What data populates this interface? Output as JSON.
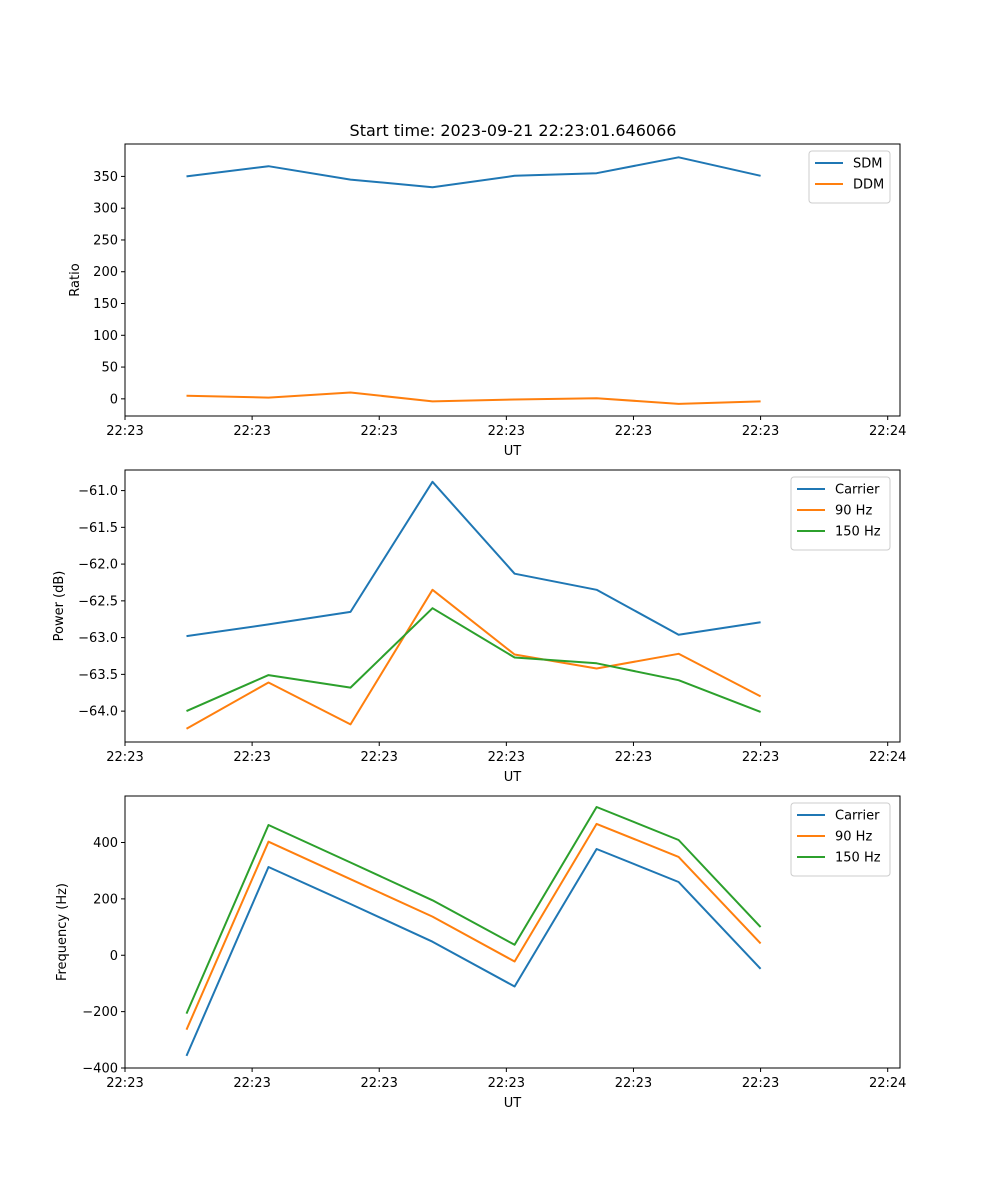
{
  "figure_title": "Start time: 2023-09-21 22:23:01.646066",
  "chart_data": [
    {
      "type": "line",
      "title": "Start time: 2023-09-21 22:23:01.646066",
      "xlabel": "UT",
      "ylabel": "Ratio",
      "x": [
        0,
        1,
        2,
        3,
        4,
        5,
        6,
        7
      ],
      "xlim": [
        -0.75,
        8.7
      ],
      "ylim": [
        -27,
        401
      ],
      "xticks": [
        -0.75,
        0.8,
        2.35,
        3.9,
        5.45,
        7.0,
        8.55
      ],
      "xtick_labels": [
        "22:23",
        "22:23",
        "22:23",
        "22:23",
        "22:23",
        "22:23",
        "22:24"
      ],
      "yticks": [
        0,
        50,
        100,
        150,
        200,
        250,
        300,
        350
      ],
      "ytick_labels": [
        "0",
        "50",
        "100",
        "150",
        "200",
        "250",
        "300",
        "350"
      ],
      "legend_position": "upper-right",
      "series": [
        {
          "name": "SDM",
          "color": "#1f77b4",
          "values": [
            350,
            366,
            345,
            333,
            351,
            355,
            380,
            351
          ]
        },
        {
          "name": "DDM",
          "color": "#ff7f0e",
          "values": [
            5,
            2,
            10,
            -4,
            -1,
            1,
            -8,
            -4
          ]
        }
      ]
    },
    {
      "type": "line",
      "title": "",
      "xlabel": "UT",
      "ylabel": "Power (dB)",
      "x": [
        0,
        1,
        2,
        3,
        4,
        5,
        6,
        7
      ],
      "xlim": [
        -0.75,
        8.7
      ],
      "ylim": [
        -64.42,
        -60.72
      ],
      "xticks": [
        -0.75,
        0.8,
        2.35,
        3.9,
        5.45,
        7.0,
        8.55
      ],
      "xtick_labels": [
        "22:23",
        "22:23",
        "22:23",
        "22:23",
        "22:23",
        "22:23",
        "22:24"
      ],
      "yticks": [
        -64.0,
        -63.5,
        -63.0,
        -62.5,
        -62.0,
        -61.5,
        -61.0
      ],
      "ytick_labels": [
        "−64.0",
        "−63.5",
        "−63.0",
        "−62.5",
        "−62.0",
        "−61.5",
        "−61.0"
      ],
      "legend_position": "upper-right",
      "series": [
        {
          "name": "Carrier",
          "color": "#1f77b4",
          "values": [
            -62.98,
            -62.82,
            -62.65,
            -60.88,
            -62.13,
            -62.35,
            -62.96,
            -62.79
          ]
        },
        {
          "name": "90 Hz",
          "color": "#ff7f0e",
          "values": [
            -64.24,
            -63.61,
            -64.18,
            -62.35,
            -63.23,
            -63.42,
            -63.22,
            -63.8
          ]
        },
        {
          "name": "150 Hz",
          "color": "#2ca02c",
          "values": [
            -64.0,
            -63.51,
            -63.68,
            -62.6,
            -63.27,
            -63.35,
            -63.58,
            -64.01
          ]
        }
      ]
    },
    {
      "type": "line",
      "title": "",
      "xlabel": "UT",
      "ylabel": "Frequency (Hz)",
      "x": [
        0,
        1,
        2,
        3,
        4,
        5,
        6,
        7
      ],
      "xlim": [
        -0.75,
        8.7
      ],
      "ylim": [
        -400,
        565
      ],
      "xticks": [
        -0.75,
        0.8,
        2.35,
        3.9,
        5.45,
        7.0,
        8.55
      ],
      "xtick_labels": [
        "22:23",
        "22:23",
        "22:23",
        "22:23",
        "22:23",
        "22:23",
        "22:24"
      ],
      "yticks": [
        -400,
        -200,
        0,
        200,
        400
      ],
      "ytick_labels": [
        "−400",
        "−200",
        "0",
        "200",
        "400"
      ],
      "legend_position": "upper-right",
      "series": [
        {
          "name": "Carrier",
          "color": "#1f77b4",
          "values": [
            -357,
            313,
            182,
            48,
            -111,
            377,
            260,
            -48
          ]
        },
        {
          "name": "90 Hz",
          "color": "#ff7f0e",
          "values": [
            -264,
            403,
            270,
            137,
            -22,
            466,
            349,
            42
          ]
        },
        {
          "name": "150 Hz",
          "color": "#2ca02c",
          "values": [
            -207,
            462,
            329,
            195,
            37,
            526,
            409,
            100
          ]
        }
      ]
    }
  ]
}
